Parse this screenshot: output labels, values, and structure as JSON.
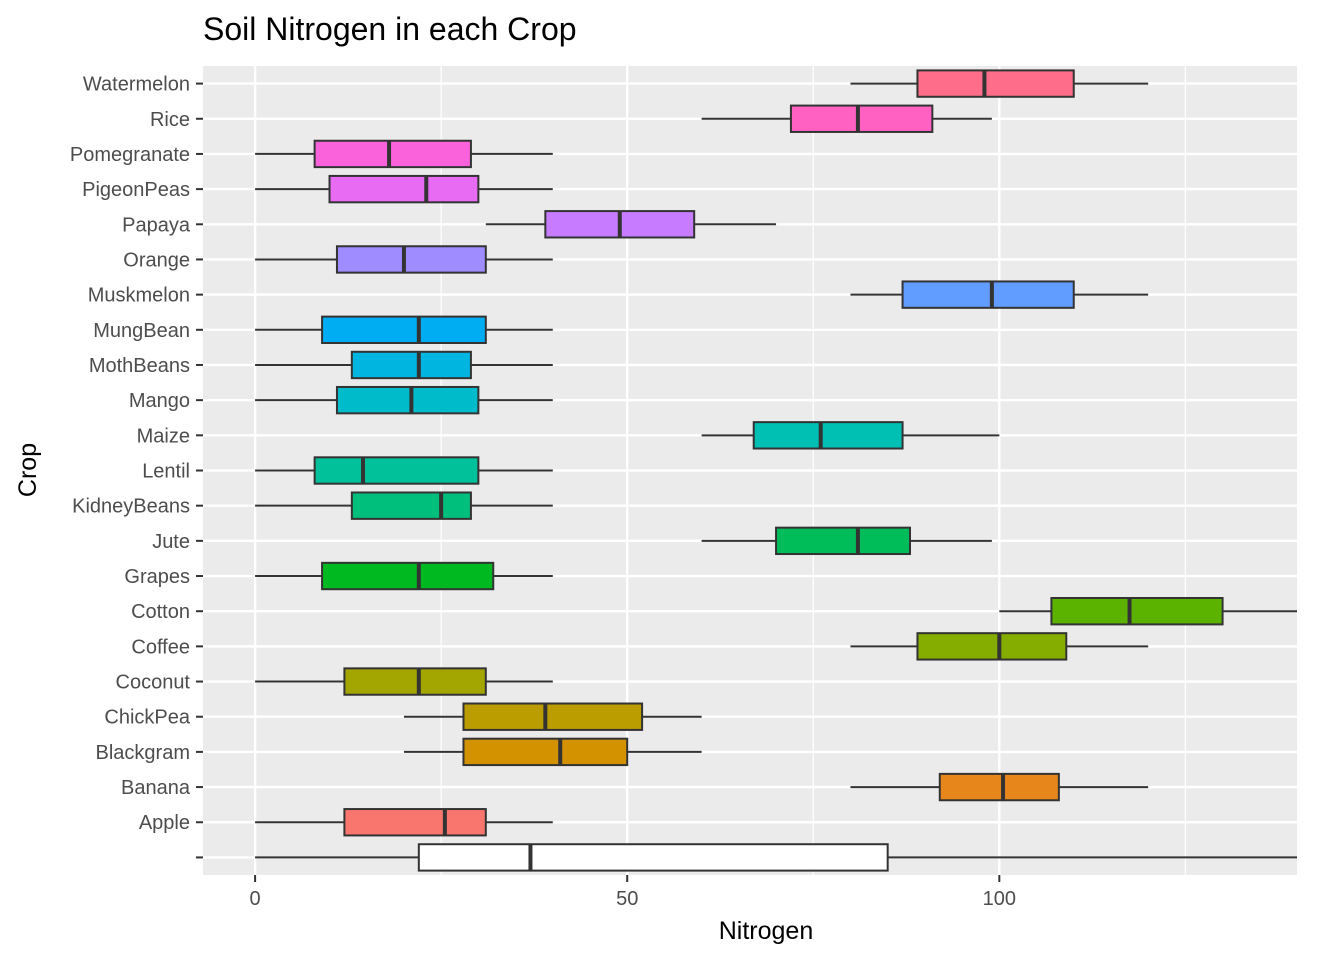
{
  "chart_data": {
    "type": "boxplot",
    "orientation": "horizontal",
    "title": "Soil Nitrogen in each Crop",
    "xlabel": "Nitrogen",
    "ylabel": "Crop",
    "xlim": [
      -7,
      140
    ],
    "x_ticks": [
      0,
      50,
      100
    ],
    "grid": true,
    "legend": "none",
    "categories": [
      "",
      "Apple",
      "Banana",
      "Blackgram",
      "ChickPea",
      "Coconut",
      "Coffee",
      "Cotton",
      "Grapes",
      "Jute",
      "KidneyBeans",
      "Lentil",
      "Maize",
      "Mango",
      "MothBeans",
      "MungBean",
      "Muskmelon",
      "Orange",
      "Papaya",
      "PigeonPeas",
      "Pomegranate",
      "Rice",
      "Watermelon"
    ],
    "series": [
      {
        "category": "",
        "whisker_low": 0,
        "q1": 22,
        "median": 37,
        "q3": 85,
        "whisker_high": 140,
        "color": "#ffffff"
      },
      {
        "category": "Apple",
        "whisker_low": 0,
        "q1": 12,
        "median": 25.5,
        "q3": 31,
        "whisker_high": 40,
        "color": "#f8766d"
      },
      {
        "category": "Banana",
        "whisker_low": 80,
        "q1": 92,
        "median": 100.5,
        "q3": 108,
        "whisker_high": 120,
        "color": "#e7861b"
      },
      {
        "category": "Blackgram",
        "whisker_low": 20,
        "q1": 28,
        "median": 41,
        "q3": 50,
        "whisker_high": 60,
        "color": "#d39200"
      },
      {
        "category": "ChickPea",
        "whisker_low": 20,
        "q1": 28,
        "median": 39,
        "q3": 52,
        "whisker_high": 60,
        "color": "#bc9d00"
      },
      {
        "category": "Coconut",
        "whisker_low": 0,
        "q1": 12,
        "median": 22,
        "q3": 31,
        "whisker_high": 40,
        "color": "#a3a500"
      },
      {
        "category": "Coffee",
        "whisker_low": 80,
        "q1": 89,
        "median": 100,
        "q3": 109,
        "whisker_high": 120,
        "color": "#85ad00"
      },
      {
        "category": "Cotton",
        "whisker_low": 100,
        "q1": 107,
        "median": 117.5,
        "q3": 130,
        "whisker_high": 140,
        "color": "#5bb300"
      },
      {
        "category": "Grapes",
        "whisker_low": 0,
        "q1": 9,
        "median": 22,
        "q3": 32,
        "whisker_high": 40,
        "color": "#00b81f"
      },
      {
        "category": "Jute",
        "whisker_low": 60,
        "q1": 70,
        "median": 81,
        "q3": 88,
        "whisker_high": 99,
        "color": "#00bc59"
      },
      {
        "category": "KidneyBeans",
        "whisker_low": 0,
        "q1": 13,
        "median": 25,
        "q3": 29,
        "whisker_high": 40,
        "color": "#00bf7d"
      },
      {
        "category": "Lentil",
        "whisker_low": 0,
        "q1": 8,
        "median": 14.5,
        "q3": 30,
        "whisker_high": 40,
        "color": "#00c19a"
      },
      {
        "category": "Maize",
        "whisker_low": 60,
        "q1": 67,
        "median": 76,
        "q3": 87,
        "whisker_high": 100,
        "color": "#00c0b4"
      },
      {
        "category": "Mango",
        "whisker_low": 0,
        "q1": 11,
        "median": 21,
        "q3": 30,
        "whisker_high": 40,
        "color": "#00bccb"
      },
      {
        "category": "MothBeans",
        "whisker_low": 0,
        "q1": 13,
        "median": 22,
        "q3": 29,
        "whisker_high": 40,
        "color": "#00b6e0"
      },
      {
        "category": "MungBean",
        "whisker_low": 0,
        "q1": 9,
        "median": 22,
        "q3": 31,
        "whisker_high": 40,
        "color": "#00adf2"
      },
      {
        "category": "Muskmelon",
        "whisker_low": 80,
        "q1": 87,
        "median": 99,
        "q3": 110,
        "whisker_high": 120,
        "color": "#619cff"
      },
      {
        "category": "Orange",
        "whisker_low": 0,
        "q1": 11,
        "median": 20,
        "q3": 31,
        "whisker_high": 40,
        "color": "#9f8cff"
      },
      {
        "category": "Papaya",
        "whisker_low": 31,
        "q1": 39,
        "median": 49,
        "q3": 59,
        "whisker_high": 70,
        "color": "#c77cff"
      },
      {
        "category": "PigeonPeas",
        "whisker_low": 0,
        "q1": 10,
        "median": 23,
        "q3": 30,
        "whisker_high": 40,
        "color": "#e76bf3"
      },
      {
        "category": "Pomegranate",
        "whisker_low": 0,
        "q1": 8,
        "median": 18,
        "q3": 29,
        "whisker_high": 40,
        "color": "#fa62db"
      },
      {
        "category": "Rice",
        "whisker_low": 60,
        "q1": 72,
        "median": 81,
        "q3": 91,
        "whisker_high": 99,
        "color": "#ff61c3"
      },
      {
        "category": "Watermelon",
        "whisker_low": 80,
        "q1": 89,
        "median": 98,
        "q3": 110,
        "whisker_high": 120,
        "color": "#fe6e8a"
      }
    ]
  }
}
